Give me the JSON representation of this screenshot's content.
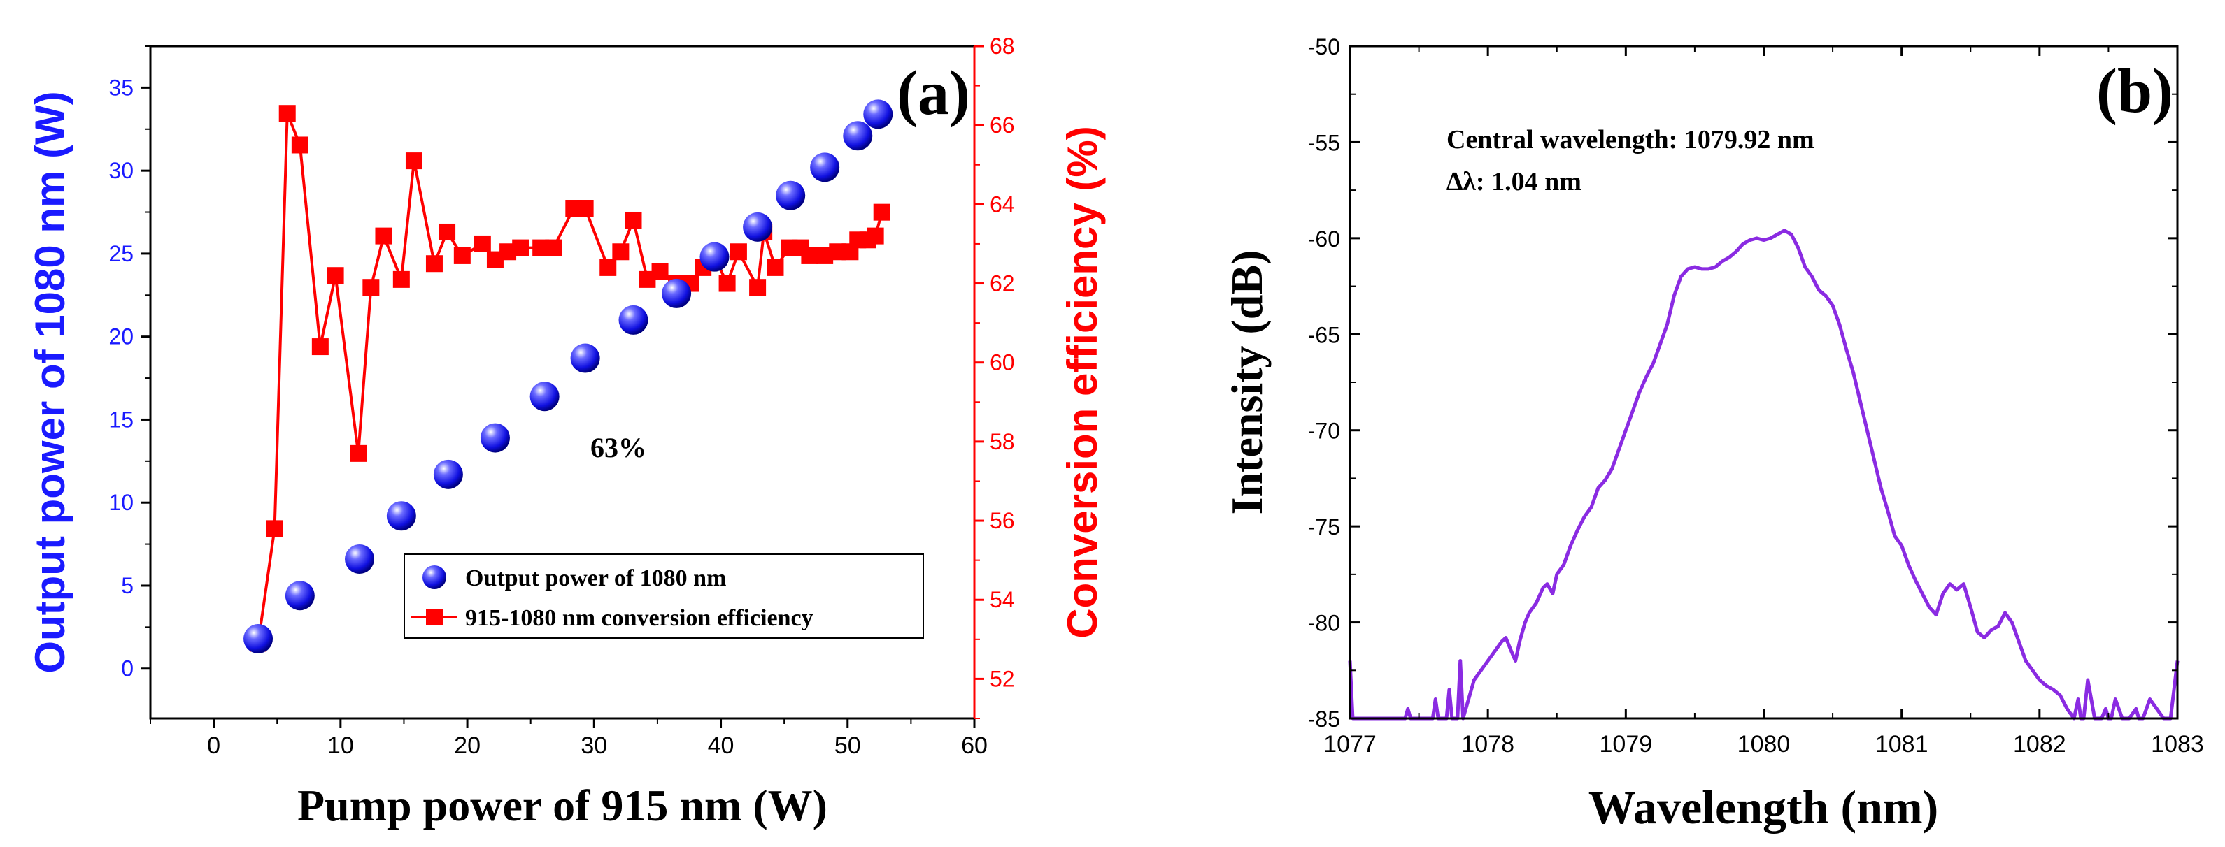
{
  "colors": {
    "blue": "#1a1aff",
    "red": "#ff0000",
    "purple": "#8a2be2",
    "black": "#000000"
  },
  "chart_data": [
    {
      "panel_label": "(a)",
      "type": "line+scatter",
      "xlabel": "Pump power of 915 nm (W)",
      "ylabel_left": "Output power of 1080 nm (W)",
      "ylabel_right": "Conversion efficiency (%)",
      "xlim": [
        -5,
        60
      ],
      "ylim_left": [
        -3,
        37.5
      ],
      "ylim_right": [
        51,
        68
      ],
      "x_ticks": [
        "0",
        "10",
        "20",
        "30",
        "40",
        "50",
        "60"
      ],
      "y_left_ticks": [
        "0",
        "5",
        "10",
        "15",
        "20",
        "25",
        "30",
        "35"
      ],
      "y_right_ticks": [
        "52",
        "54",
        "56",
        "58",
        "60",
        "62",
        "64",
        "66",
        "68"
      ],
      "annotation": "63%",
      "series": [
        {
          "name": "Output power of 1080 nm",
          "axis": "left",
          "marker": "sphere",
          "x": [
            3.5,
            6.8,
            11.5,
            14.8,
            18.5,
            22.2,
            26.1,
            29.3,
            33.1,
            36.5,
            39.5,
            42.9,
            45.5,
            48.2,
            50.8,
            52.4
          ],
          "y": [
            1.8,
            4.4,
            6.6,
            9.2,
            11.7,
            13.9,
            16.4,
            18.7,
            21.0,
            22.6,
            24.8,
            26.6,
            28.5,
            30.2,
            32.1,
            33.4
          ]
        },
        {
          "name": "915-1080 nm conversion efficiency",
          "axis": "right",
          "marker": "square",
          "x": [
            3.5,
            4.8,
            5.8,
            6.8,
            8.4,
            9.6,
            11.4,
            12.4,
            13.4,
            14.8,
            15.8,
            17.4,
            18.4,
            19.6,
            21.2,
            22.2,
            23.2,
            24.2,
            25.8,
            26.8,
            28.4,
            29.3,
            31.1,
            32.1,
            33.1,
            34.2,
            35.2,
            36.5,
            37.6,
            38.6,
            39.6,
            40.5,
            41.4,
            42.9,
            43.4,
            44.3,
            45.4,
            46.3,
            47.0,
            48.2,
            49.2,
            50.2,
            50.8,
            51.6,
            52.2,
            52.7
          ],
          "y": [
            52.9,
            55.8,
            66.3,
            65.5,
            60.4,
            62.2,
            57.7,
            61.9,
            63.2,
            62.1,
            65.1,
            62.5,
            63.3,
            62.7,
            63.0,
            62.6,
            62.8,
            62.9,
            62.9,
            62.9,
            63.9,
            63.9,
            62.4,
            62.8,
            63.6,
            62.1,
            62.3,
            62.0,
            62.0,
            62.4,
            62.6,
            62.0,
            62.8,
            61.9,
            63.3,
            62.4,
            62.9,
            62.9,
            62.7,
            62.7,
            62.8,
            62.8,
            63.1,
            63.1,
            63.2,
            63.8
          ]
        }
      ],
      "legend": [
        "Output power of 1080 nm",
        "915-1080 nm conversion efficiency"
      ]
    },
    {
      "panel_label": "(b)",
      "type": "line",
      "xlabel": "Wavelength (nm)",
      "ylabel": "Intensity (dB)",
      "xlim": [
        1077,
        1083
      ],
      "ylim": [
        -85,
        -50
      ],
      "x_ticks": [
        "1077",
        "1078",
        "1079",
        "1080",
        "1081",
        "1082",
        "1083"
      ],
      "y_ticks": [
        "-50",
        "-55",
        "-60",
        "-65",
        "-70",
        "-75",
        "-80",
        "-85"
      ],
      "annotations": [
        "Central wavelength: 1079.92 nm",
        "∆λ: 1.04 nm"
      ],
      "series": [
        {
          "name": "spectrum",
          "x": [
            1077.0,
            1077.02,
            1077.05,
            1077.4,
            1077.42,
            1077.44,
            1077.6,
            1077.62,
            1077.64,
            1077.7,
            1077.72,
            1077.74,
            1077.78,
            1077.8,
            1077.82,
            1077.86,
            1077.9,
            1077.95,
            1078.0,
            1078.05,
            1078.1,
            1078.13,
            1078.17,
            1078.2,
            1078.23,
            1078.27,
            1078.3,
            1078.35,
            1078.4,
            1078.43,
            1078.47,
            1078.5,
            1078.55,
            1078.6,
            1078.65,
            1078.7,
            1078.75,
            1078.8,
            1078.85,
            1078.9,
            1078.95,
            1079.0,
            1079.05,
            1079.1,
            1079.15,
            1079.2,
            1079.25,
            1079.3,
            1079.35,
            1079.4,
            1079.45,
            1079.5,
            1079.55,
            1079.6,
            1079.65,
            1079.7,
            1079.75,
            1079.8,
            1079.85,
            1079.9,
            1079.95,
            1080.0,
            1080.05,
            1080.1,
            1080.15,
            1080.2,
            1080.25,
            1080.3,
            1080.35,
            1080.4,
            1080.45,
            1080.5,
            1080.55,
            1080.6,
            1080.65,
            1080.7,
            1080.75,
            1080.8,
            1080.85,
            1080.9,
            1080.95,
            1081.0,
            1081.05,
            1081.1,
            1081.15,
            1081.2,
            1081.25,
            1081.3,
            1081.35,
            1081.4,
            1081.45,
            1081.5,
            1081.55,
            1081.6,
            1081.65,
            1081.7,
            1081.75,
            1081.8,
            1081.85,
            1081.9,
            1081.95,
            1082.0,
            1082.05,
            1082.1,
            1082.15,
            1082.2,
            1082.25,
            1082.28,
            1082.3,
            1082.32,
            1082.35,
            1082.4,
            1082.45,
            1082.48,
            1082.5,
            1082.52,
            1082.55,
            1082.6,
            1082.65,
            1082.7,
            1082.72,
            1082.75,
            1082.8,
            1082.85,
            1082.9,
            1082.95,
            1083.0
          ],
          "y": [
            -82.0,
            -85.0,
            -85.0,
            -85.0,
            -84.5,
            -85.0,
            -85.0,
            -84.0,
            -85.0,
            -85.0,
            -83.5,
            -85.0,
            -85.0,
            -82.0,
            -85.0,
            -84.0,
            -83.0,
            -82.5,
            -82.0,
            -81.5,
            -81.0,
            -80.8,
            -81.5,
            -82.0,
            -81.0,
            -80.0,
            -79.5,
            -79.0,
            -78.2,
            -78.0,
            -78.5,
            -77.5,
            -77.0,
            -76.0,
            -75.2,
            -74.5,
            -74.0,
            -73.0,
            -72.6,
            -72.0,
            -71.0,
            -70.0,
            -69.0,
            -68.0,
            -67.2,
            -66.5,
            -65.5,
            -64.5,
            -63.0,
            -62.0,
            -61.6,
            -61.5,
            -61.6,
            -61.6,
            -61.5,
            -61.2,
            -61.0,
            -60.7,
            -60.3,
            -60.1,
            -60.0,
            -60.1,
            -60.0,
            -59.8,
            -59.6,
            -59.8,
            -60.5,
            -61.5,
            -62.0,
            -62.7,
            -63.0,
            -63.5,
            -64.5,
            -65.8,
            -67.0,
            -68.5,
            -70.0,
            -71.5,
            -73.0,
            -74.2,
            -75.5,
            -76.0,
            -77.0,
            -77.8,
            -78.5,
            -79.2,
            -79.6,
            -78.5,
            -78.0,
            -78.3,
            -78.0,
            -79.2,
            -80.5,
            -80.8,
            -80.4,
            -80.2,
            -79.5,
            -80.0,
            -81.0,
            -82.0,
            -82.5,
            -83.0,
            -83.3,
            -83.5,
            -83.8,
            -84.5,
            -85.0,
            -84.0,
            -85.0,
            -85.0,
            -83.0,
            -85.0,
            -85.0,
            -84.5,
            -85.0,
            -85.0,
            -84.0,
            -85.0,
            -85.0,
            -84.5,
            -85.0,
            -85.0,
            -84.0,
            -84.5,
            -85.0,
            -85.0,
            -82.0
          ]
        }
      ]
    }
  ]
}
